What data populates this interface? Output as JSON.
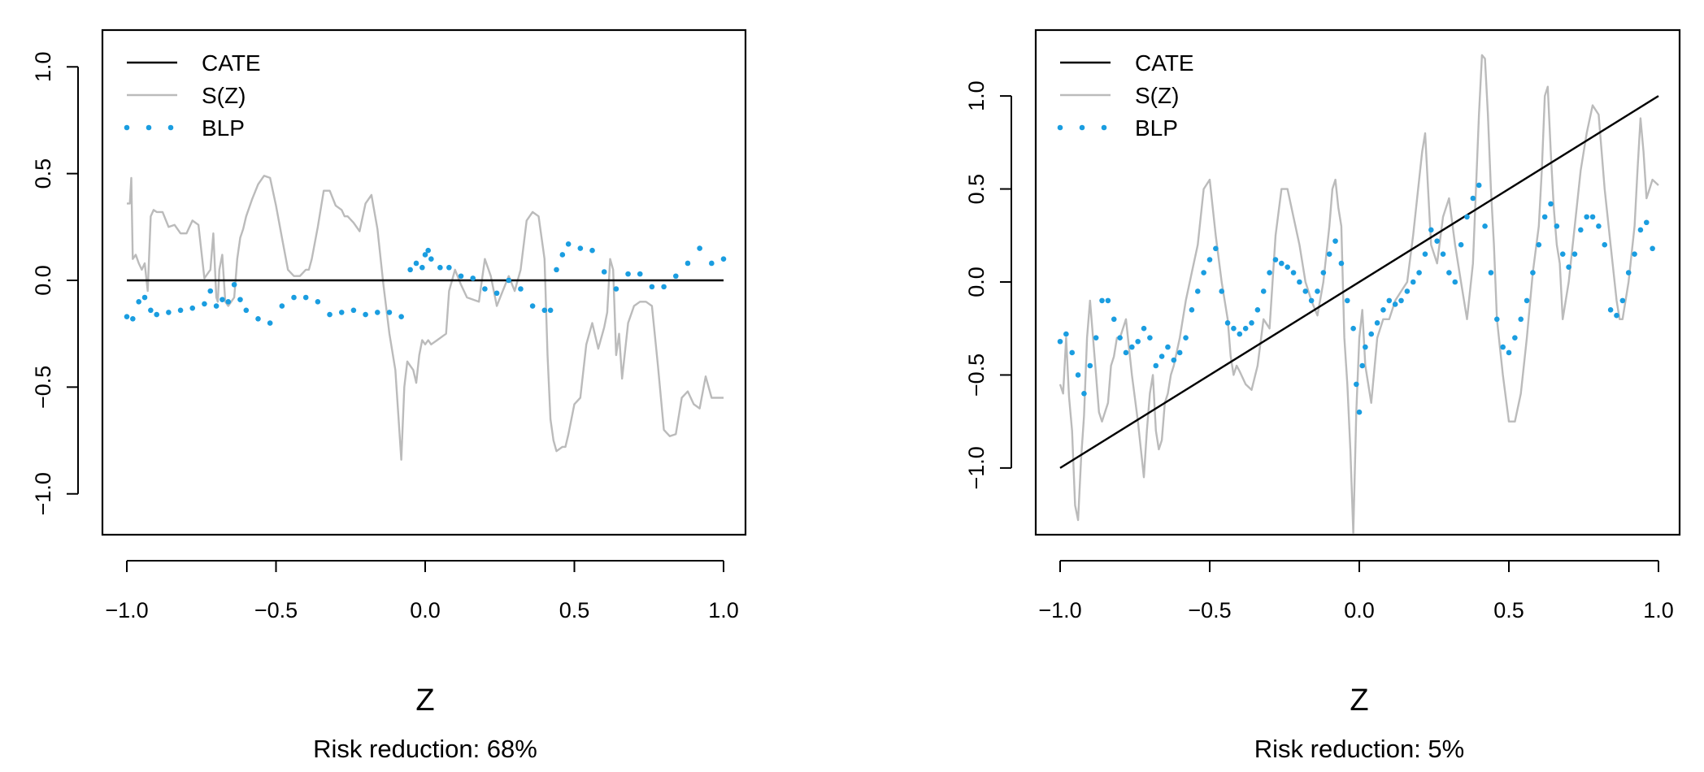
{
  "chart_data": [
    {
      "type": "line",
      "title": "",
      "xlabel": "Z",
      "ylabel": "",
      "caption": "Risk reduction: 68%",
      "xlim": [
        -1.0,
        1.0
      ],
      "ylim": [
        -1.1,
        1.1
      ],
      "x_ticks": [
        "−1.0",
        "−0.5",
        "0.0",
        "0.5",
        "1.0"
      ],
      "x_tick_values": [
        -1.0,
        -0.5,
        0.0,
        0.5,
        1.0
      ],
      "y_ticks": [
        "−1.0",
        "−0.5",
        "0.0",
        "0.5",
        "1.0"
      ],
      "y_tick_values": [
        -1.0,
        -0.5,
        0.0,
        0.5,
        1.0
      ],
      "legend_position": "top-left",
      "legend": [
        {
          "label": "CATE",
          "style": "solid",
          "color": "#000000"
        },
        {
          "label": "S(Z)",
          "style": "solid",
          "color": "#bbbbbb"
        },
        {
          "label": "BLP",
          "style": "dotted",
          "color": "#1a9de0"
        }
      ],
      "series": [
        {
          "name": "CATE",
          "color": "#000000",
          "x": [
            -1.0,
            1.0
          ],
          "y": [
            0.0,
            0.0
          ]
        },
        {
          "name": "S(Z)",
          "color": "#bbbbbb",
          "x": [
            -1.0,
            -0.99,
            -0.985,
            -0.98,
            -0.97,
            -0.96,
            -0.95,
            -0.94,
            -0.93,
            -0.92,
            -0.91,
            -0.9,
            -0.88,
            -0.86,
            -0.84,
            -0.82,
            -0.8,
            -0.78,
            -0.76,
            -0.74,
            -0.72,
            -0.71,
            -0.7,
            -0.695,
            -0.69,
            -0.68,
            -0.67,
            -0.66,
            -0.65,
            -0.64,
            -0.63,
            -0.62,
            -0.61,
            -0.6,
            -0.58,
            -0.56,
            -0.54,
            -0.52,
            -0.5,
            -0.48,
            -0.46,
            -0.44,
            -0.42,
            -0.4,
            -0.39,
            -0.38,
            -0.36,
            -0.34,
            -0.32,
            -0.3,
            -0.28,
            -0.27,
            -0.26,
            -0.24,
            -0.22,
            -0.2,
            -0.18,
            -0.16,
            -0.14,
            -0.12,
            -0.1,
            -0.08,
            -0.07,
            -0.06,
            -0.05,
            -0.04,
            -0.03,
            -0.02,
            -0.01,
            0.0,
            0.01,
            0.02,
            0.04,
            0.06,
            0.07,
            0.08,
            0.1,
            0.12,
            0.14,
            0.16,
            0.18,
            0.2,
            0.22,
            0.23,
            0.24,
            0.26,
            0.28,
            0.3,
            0.32,
            0.34,
            0.36,
            0.38,
            0.4,
            0.41,
            0.42,
            0.43,
            0.44,
            0.46,
            0.47,
            0.48,
            0.5,
            0.52,
            0.54,
            0.56,
            0.58,
            0.6,
            0.61,
            0.62,
            0.63,
            0.64,
            0.65,
            0.66,
            0.68,
            0.7,
            0.72,
            0.74,
            0.76,
            0.78,
            0.8,
            0.82,
            0.84,
            0.86,
            0.88,
            0.9,
            0.92,
            0.94,
            0.96,
            0.98,
            1.0
          ],
          "y": [
            0.36,
            0.36,
            0.48,
            0.1,
            0.12,
            0.08,
            0.05,
            0.08,
            -0.05,
            0.3,
            0.33,
            0.32,
            0.32,
            0.25,
            0.26,
            0.22,
            0.22,
            0.28,
            0.26,
            0.01,
            0.05,
            0.22,
            -0.08,
            -0.1,
            0.05,
            0.12,
            -0.1,
            -0.12,
            -0.1,
            -0.08,
            0.1,
            0.2,
            0.24,
            0.3,
            0.38,
            0.45,
            0.49,
            0.48,
            0.35,
            0.2,
            0.05,
            0.02,
            0.02,
            0.05,
            0.05,
            0.1,
            0.25,
            0.42,
            0.42,
            0.35,
            0.33,
            0.3,
            0.3,
            0.27,
            0.23,
            0.36,
            0.4,
            0.24,
            -0.02,
            -0.25,
            -0.42,
            -0.84,
            -0.5,
            -0.38,
            -0.4,
            -0.42,
            -0.48,
            -0.35,
            -0.28,
            -0.3,
            -0.28,
            -0.3,
            -0.28,
            -0.26,
            -0.25,
            -0.05,
            0.05,
            -0.02,
            -0.08,
            -0.09,
            -0.1,
            0.1,
            0.02,
            -0.05,
            -0.12,
            -0.05,
            0.02,
            -0.05,
            0.05,
            0.28,
            0.32,
            0.3,
            0.1,
            -0.35,
            -0.65,
            -0.75,
            -0.8,
            -0.78,
            -0.78,
            -0.72,
            -0.58,
            -0.55,
            -0.3,
            -0.2,
            -0.32,
            -0.22,
            -0.15,
            0.1,
            0.05,
            -0.35,
            -0.25,
            -0.46,
            -0.2,
            -0.12,
            -0.1,
            -0.1,
            -0.12,
            -0.4,
            -0.7,
            -0.73,
            -0.72,
            -0.55,
            -0.52,
            -0.58,
            -0.6,
            -0.45,
            -0.55,
            -0.55,
            -0.55
          ]
        },
        {
          "name": "BLP",
          "color": "#1a9de0",
          "x": [
            -1.0,
            -0.98,
            -0.96,
            -0.94,
            -0.92,
            -0.9,
            -0.86,
            -0.82,
            -0.78,
            -0.74,
            -0.72,
            -0.7,
            -0.68,
            -0.66,
            -0.64,
            -0.62,
            -0.6,
            -0.56,
            -0.52,
            -0.48,
            -0.44,
            -0.4,
            -0.36,
            -0.32,
            -0.28,
            -0.24,
            -0.2,
            -0.16,
            -0.12,
            -0.08,
            -0.05,
            -0.03,
            -0.01,
            0.0,
            0.01,
            0.02,
            0.05,
            0.08,
            0.12,
            0.16,
            0.2,
            0.24,
            0.28,
            0.32,
            0.36,
            0.4,
            0.42,
            0.44,
            0.46,
            0.48,
            0.52,
            0.56,
            0.6,
            0.64,
            0.68,
            0.72,
            0.76,
            0.8,
            0.84,
            0.88,
            0.92,
            0.96,
            1.0
          ],
          "y": [
            -0.17,
            -0.18,
            -0.1,
            -0.08,
            -0.14,
            -0.16,
            -0.15,
            -0.14,
            -0.13,
            -0.11,
            -0.05,
            -0.12,
            -0.09,
            -0.1,
            -0.02,
            -0.09,
            -0.14,
            -0.18,
            -0.2,
            -0.12,
            -0.08,
            -0.08,
            -0.1,
            -0.16,
            -0.15,
            -0.14,
            -0.16,
            -0.15,
            -0.15,
            -0.17,
            0.05,
            0.08,
            0.06,
            0.12,
            0.14,
            0.1,
            0.06,
            0.06,
            0.02,
            0.01,
            -0.04,
            -0.06,
            0.0,
            -0.04,
            -0.12,
            -0.14,
            -0.14,
            0.05,
            0.12,
            0.17,
            0.15,
            0.14,
            0.04,
            -0.04,
            0.03,
            0.03,
            -0.03,
            -0.03,
            0.02,
            0.08,
            0.15,
            0.08,
            0.1
          ]
        }
      ]
    },
    {
      "type": "line",
      "title": "",
      "xlabel": "Z",
      "ylabel": "",
      "caption": "Risk reduction: 5%",
      "xlim": [
        -1.0,
        1.0
      ],
      "ylim": [
        -1.35,
        1.35
      ],
      "x_ticks": [
        "−1.0",
        "−0.5",
        "0.0",
        "0.5",
        "1.0"
      ],
      "x_tick_values": [
        -1.0,
        -0.5,
        0.0,
        0.5,
        1.0
      ],
      "y_ticks": [
        "−1.0",
        "−0.5",
        "0.0",
        "0.5",
        "1.0"
      ],
      "y_tick_values": [
        -1.0,
        -0.5,
        0.0,
        0.5,
        1.0
      ],
      "legend_position": "top-left",
      "legend": [
        {
          "label": "CATE",
          "style": "solid",
          "color": "#000000"
        },
        {
          "label": "S(Z)",
          "style": "solid",
          "color": "#bbbbbb"
        },
        {
          "label": "BLP",
          "style": "dotted",
          "color": "#1a9de0"
        }
      ],
      "series": [
        {
          "name": "CATE",
          "color": "#000000",
          "x": [
            -1.0,
            1.0
          ],
          "y": [
            -1.0,
            1.0
          ]
        },
        {
          "name": "S(Z)",
          "color": "#bbbbbb",
          "x": [
            -1.0,
            -0.99,
            -0.98,
            -0.97,
            -0.96,
            -0.95,
            -0.94,
            -0.93,
            -0.92,
            -0.91,
            -0.9,
            -0.89,
            -0.88,
            -0.87,
            -0.86,
            -0.85,
            -0.84,
            -0.83,
            -0.82,
            -0.81,
            -0.8,
            -0.78,
            -0.76,
            -0.74,
            -0.72,
            -0.71,
            -0.7,
            -0.69,
            -0.68,
            -0.67,
            -0.66,
            -0.65,
            -0.64,
            -0.63,
            -0.62,
            -0.6,
            -0.58,
            -0.56,
            -0.54,
            -0.52,
            -0.5,
            -0.48,
            -0.46,
            -0.44,
            -0.43,
            -0.42,
            -0.41,
            -0.4,
            -0.38,
            -0.36,
            -0.34,
            -0.32,
            -0.3,
            -0.28,
            -0.26,
            -0.24,
            -0.22,
            -0.2,
            -0.18,
            -0.16,
            -0.14,
            -0.12,
            -0.1,
            -0.09,
            -0.08,
            -0.07,
            -0.06,
            -0.05,
            -0.04,
            -0.03,
            -0.02,
            -0.01,
            0.0,
            0.01,
            0.02,
            0.04,
            0.06,
            0.08,
            0.1,
            0.12,
            0.14,
            0.16,
            0.18,
            0.2,
            0.21,
            0.22,
            0.23,
            0.24,
            0.26,
            0.28,
            0.3,
            0.32,
            0.34,
            0.36,
            0.38,
            0.39,
            0.4,
            0.41,
            0.42,
            0.43,
            0.44,
            0.45,
            0.46,
            0.48,
            0.5,
            0.52,
            0.54,
            0.56,
            0.58,
            0.6,
            0.61,
            0.62,
            0.63,
            0.64,
            0.65,
            0.66,
            0.67,
            0.68,
            0.7,
            0.72,
            0.74,
            0.76,
            0.78,
            0.8,
            0.82,
            0.84,
            0.86,
            0.87,
            0.88,
            0.9,
            0.92,
            0.93,
            0.94,
            0.95,
            0.96,
            0.97,
            0.98,
            1.0
          ],
          "y": [
            -0.55,
            -0.6,
            -0.3,
            -0.62,
            -0.8,
            -1.2,
            -1.28,
            -0.95,
            -0.72,
            -0.3,
            -0.1,
            -0.3,
            -0.5,
            -0.7,
            -0.75,
            -0.7,
            -0.65,
            -0.45,
            -0.4,
            -0.3,
            -0.3,
            -0.2,
            -0.5,
            -0.75,
            -1.05,
            -0.8,
            -0.6,
            -0.5,
            -0.8,
            -0.9,
            -0.85,
            -0.65,
            -0.6,
            -0.5,
            -0.45,
            -0.3,
            -0.1,
            0.05,
            0.2,
            0.5,
            0.55,
            0.25,
            0.0,
            -0.2,
            -0.4,
            -0.5,
            -0.45,
            -0.48,
            -0.55,
            -0.58,
            -0.45,
            -0.2,
            -0.25,
            0.25,
            0.5,
            0.5,
            0.35,
            0.2,
            0.0,
            -0.1,
            -0.18,
            0.0,
            0.3,
            0.5,
            0.55,
            0.4,
            0.3,
            -0.3,
            -0.55,
            -0.9,
            -1.35,
            -0.7,
            -0.3,
            -0.15,
            -0.45,
            -0.65,
            -0.3,
            -0.2,
            -0.2,
            -0.1,
            -0.05,
            0.0,
            0.25,
            0.55,
            0.7,
            0.8,
            0.5,
            0.2,
            0.1,
            0.35,
            0.45,
            0.2,
            0.0,
            -0.2,
            0.1,
            0.5,
            0.9,
            1.22,
            1.2,
            0.9,
            0.5,
            0.2,
            -0.2,
            -0.5,
            -0.75,
            -0.75,
            -0.6,
            -0.3,
            0.05,
            0.3,
            0.6,
            1.0,
            1.05,
            0.7,
            0.4,
            0.2,
            0.1,
            -0.2,
            0.0,
            0.3,
            0.6,
            0.8,
            0.95,
            0.9,
            0.5,
            0.2,
            -0.1,
            -0.2,
            -0.2,
            0.0,
            0.3,
            0.6,
            0.88,
            0.7,
            0.45,
            0.5,
            0.55,
            0.52
          ]
        },
        {
          "name": "BLP",
          "color": "#1a9de0",
          "x": [
            -1.0,
            -0.98,
            -0.96,
            -0.94,
            -0.92,
            -0.9,
            -0.88,
            -0.86,
            -0.84,
            -0.82,
            -0.8,
            -0.78,
            -0.76,
            -0.74,
            -0.72,
            -0.7,
            -0.68,
            -0.66,
            -0.64,
            -0.62,
            -0.6,
            -0.58,
            -0.56,
            -0.54,
            -0.52,
            -0.5,
            -0.48,
            -0.46,
            -0.44,
            -0.42,
            -0.4,
            -0.38,
            -0.36,
            -0.34,
            -0.32,
            -0.3,
            -0.28,
            -0.26,
            -0.24,
            -0.22,
            -0.2,
            -0.18,
            -0.16,
            -0.14,
            -0.12,
            -0.1,
            -0.08,
            -0.06,
            -0.04,
            -0.02,
            -0.01,
            0.0,
            0.01,
            0.02,
            0.04,
            0.06,
            0.08,
            0.1,
            0.12,
            0.14,
            0.16,
            0.18,
            0.2,
            0.22,
            0.24,
            0.26,
            0.28,
            0.3,
            0.32,
            0.34,
            0.36,
            0.38,
            0.4,
            0.42,
            0.44,
            0.46,
            0.48,
            0.5,
            0.52,
            0.54,
            0.56,
            0.58,
            0.6,
            0.62,
            0.64,
            0.66,
            0.68,
            0.7,
            0.72,
            0.74,
            0.76,
            0.78,
            0.8,
            0.82,
            0.84,
            0.86,
            0.88,
            0.9,
            0.92,
            0.94,
            0.96,
            0.98
          ],
          "y": [
            -0.32,
            -0.28,
            -0.38,
            -0.5,
            -0.6,
            -0.45,
            -0.3,
            -0.1,
            -0.1,
            -0.2,
            -0.3,
            -0.38,
            -0.35,
            -0.32,
            -0.25,
            -0.3,
            -0.45,
            -0.4,
            -0.35,
            -0.42,
            -0.38,
            -0.3,
            -0.15,
            -0.05,
            0.05,
            0.12,
            0.18,
            -0.05,
            -0.22,
            -0.25,
            -0.28,
            -0.25,
            -0.22,
            -0.15,
            -0.05,
            0.05,
            0.12,
            0.1,
            0.08,
            0.05,
            0.0,
            -0.05,
            -0.1,
            -0.05,
            0.05,
            0.15,
            0.22,
            0.1,
            -0.1,
            -0.25,
            -0.55,
            -0.7,
            -0.45,
            -0.35,
            -0.28,
            -0.22,
            -0.15,
            -0.1,
            -0.12,
            -0.1,
            -0.05,
            0.0,
            0.05,
            0.15,
            0.28,
            0.22,
            0.15,
            0.05,
            0.0,
            0.2,
            0.35,
            0.45,
            0.52,
            0.3,
            0.05,
            -0.2,
            -0.35,
            -0.38,
            -0.3,
            -0.2,
            -0.1,
            0.05,
            0.2,
            0.35,
            0.42,
            0.3,
            0.15,
            0.08,
            0.15,
            0.28,
            0.35,
            0.35,
            0.3,
            0.2,
            -0.15,
            -0.18,
            -0.1,
            0.05,
            0.15,
            0.28,
            0.32,
            0.18
          ]
        }
      ]
    }
  ]
}
